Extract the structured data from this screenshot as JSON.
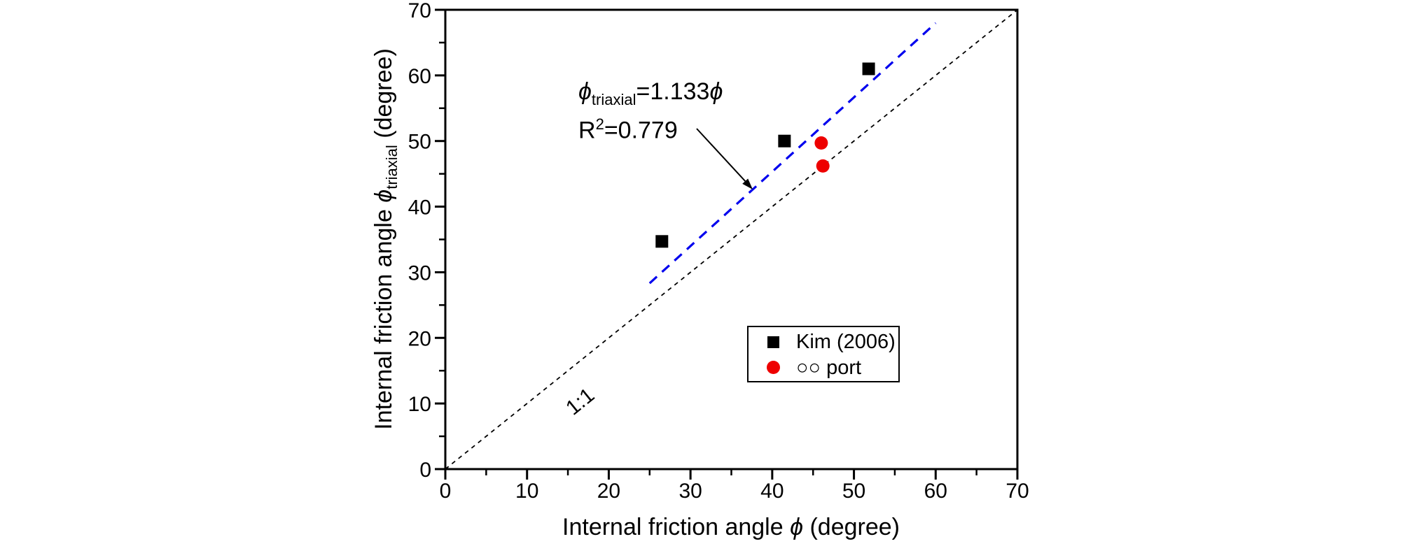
{
  "chart_data": {
    "type": "scatter",
    "title": "",
    "xlabel": "Internal friction angle ϕ (degree)",
    "ylabel": "Internal friction angle ϕ_triaxial (degree)",
    "xlim": [
      0,
      70
    ],
    "ylim": [
      0,
      70
    ],
    "major_ticks": [
      0,
      10,
      20,
      30,
      40,
      50,
      60,
      70
    ],
    "minor_ticks": [
      5,
      15,
      25,
      35,
      45,
      55,
      65
    ],
    "grid": false,
    "legend_position": "lower-right-inside",
    "series": [
      {
        "name": "Kim (2006)",
        "marker": "square",
        "color": "#000000",
        "points": [
          [
            26.5,
            34.7
          ],
          [
            41.5,
            50.0
          ],
          [
            51.8,
            61.0
          ]
        ]
      },
      {
        "name": "○○ port",
        "marker": "circle",
        "color": "#ee0000",
        "points": [
          [
            46.0,
            49.7
          ],
          [
            46.2,
            46.2
          ]
        ]
      }
    ],
    "fit_line": {
      "equation": "ϕtriaxial = 1.133ϕ",
      "slope": 1.133,
      "intercept": 0,
      "r_squared": 0.779,
      "x_range": [
        25,
        60
      ],
      "color": "#0000ee",
      "style": "dashed"
    },
    "identity_line": {
      "label": "1:1",
      "x_range": [
        0,
        70
      ],
      "slope": 1,
      "color": "#000000",
      "style": "dotted"
    }
  },
  "labels": {
    "x_axis": {
      "prefix": "Internal friction angle ",
      "phi": "ϕ",
      "suffix": " (degree)"
    },
    "y_axis": {
      "prefix": "Internal friction angle ",
      "phi": "ϕ",
      "sub": "triaxial",
      "suffix": " (degree)"
    },
    "annotation": {
      "phi1": "ϕ",
      "sub": "triaxial",
      "eq": "=1.133",
      "phi2": "ϕ",
      "r": "R",
      "sup": "2",
      "r_value": "=0.779"
    },
    "identity_label": "1:1",
    "legend": {
      "items": [
        {
          "label": "Kim (2006)"
        },
        {
          "label": "○○ port"
        }
      ]
    }
  },
  "colors": {
    "fit_line": "#0000ee",
    "port_marker": "#ee0000",
    "kim_marker": "#000000",
    "axis": "#000000",
    "background": "#ffffff"
  }
}
